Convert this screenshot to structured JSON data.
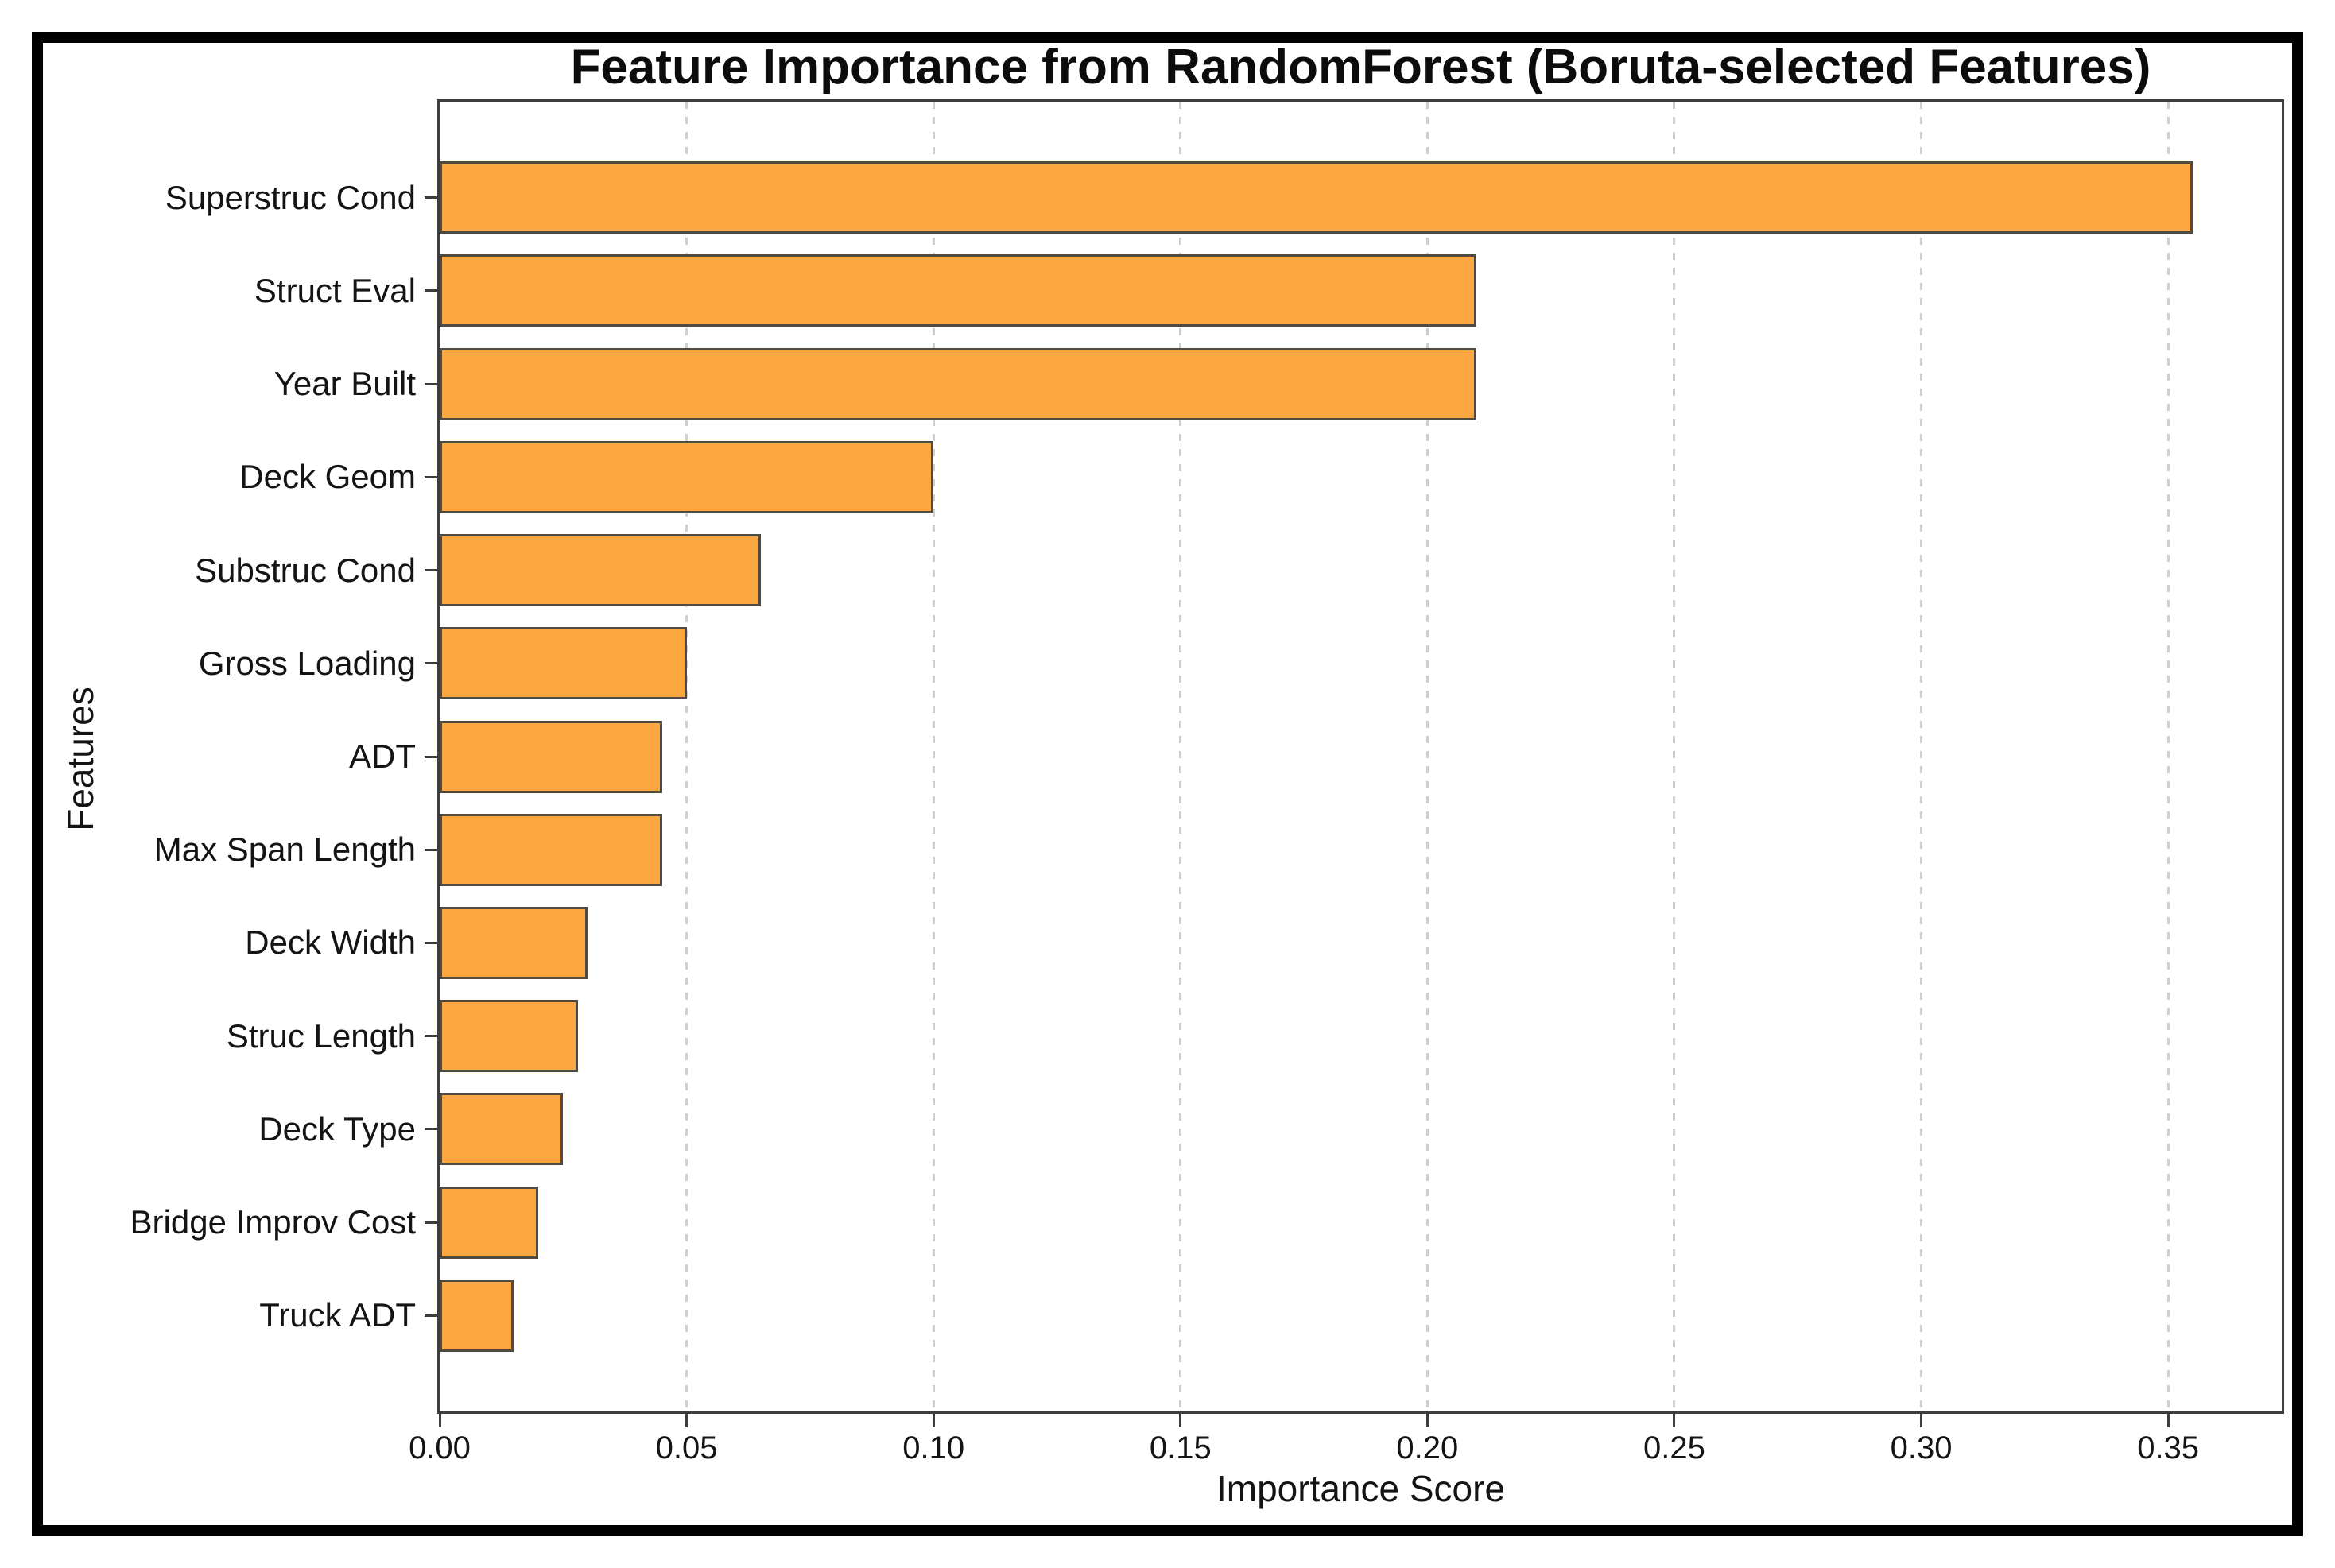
{
  "figure": {
    "title": "Feature Importance from RandomForest (Boruta-selected Features)",
    "xlabel": "Importance Score",
    "ylabel": "Features"
  },
  "chart_data": {
    "type": "bar",
    "orientation": "horizontal",
    "title": "Feature Importance from RandomForest (Boruta-selected Features)",
    "xlabel": "Importance Score",
    "ylabel": "Features",
    "categories": [
      "Superstruc Cond",
      "Struct Eval",
      "Year Built",
      "Deck Geom",
      "Substruc Cond",
      "Gross Loading",
      "ADT",
      "Max Span Length",
      "Deck Width",
      "Struc Length",
      "Deck Type",
      "Bridge Improv Cost",
      "Truck ADT"
    ],
    "values": [
      0.355,
      0.21,
      0.21,
      0.1,
      0.065,
      0.05,
      0.045,
      0.045,
      0.03,
      0.028,
      0.025,
      0.02,
      0.015
    ],
    "x_ticks": [
      0.0,
      0.05,
      0.1,
      0.15,
      0.2,
      0.25,
      0.3,
      0.35
    ],
    "x_tick_labels": [
      "0.00",
      "0.05",
      "0.10",
      "0.15",
      "0.20",
      "0.25",
      "0.30",
      "0.35"
    ],
    "xlim": [
      0,
      0.373
    ],
    "grid": "vertical-dashed",
    "legend": "none",
    "bar_color": "#FAA742",
    "bar_edge_color": "#4f4b42",
    "grid_color": "#cfcfcf",
    "spine_color": "#3d3d3d"
  }
}
